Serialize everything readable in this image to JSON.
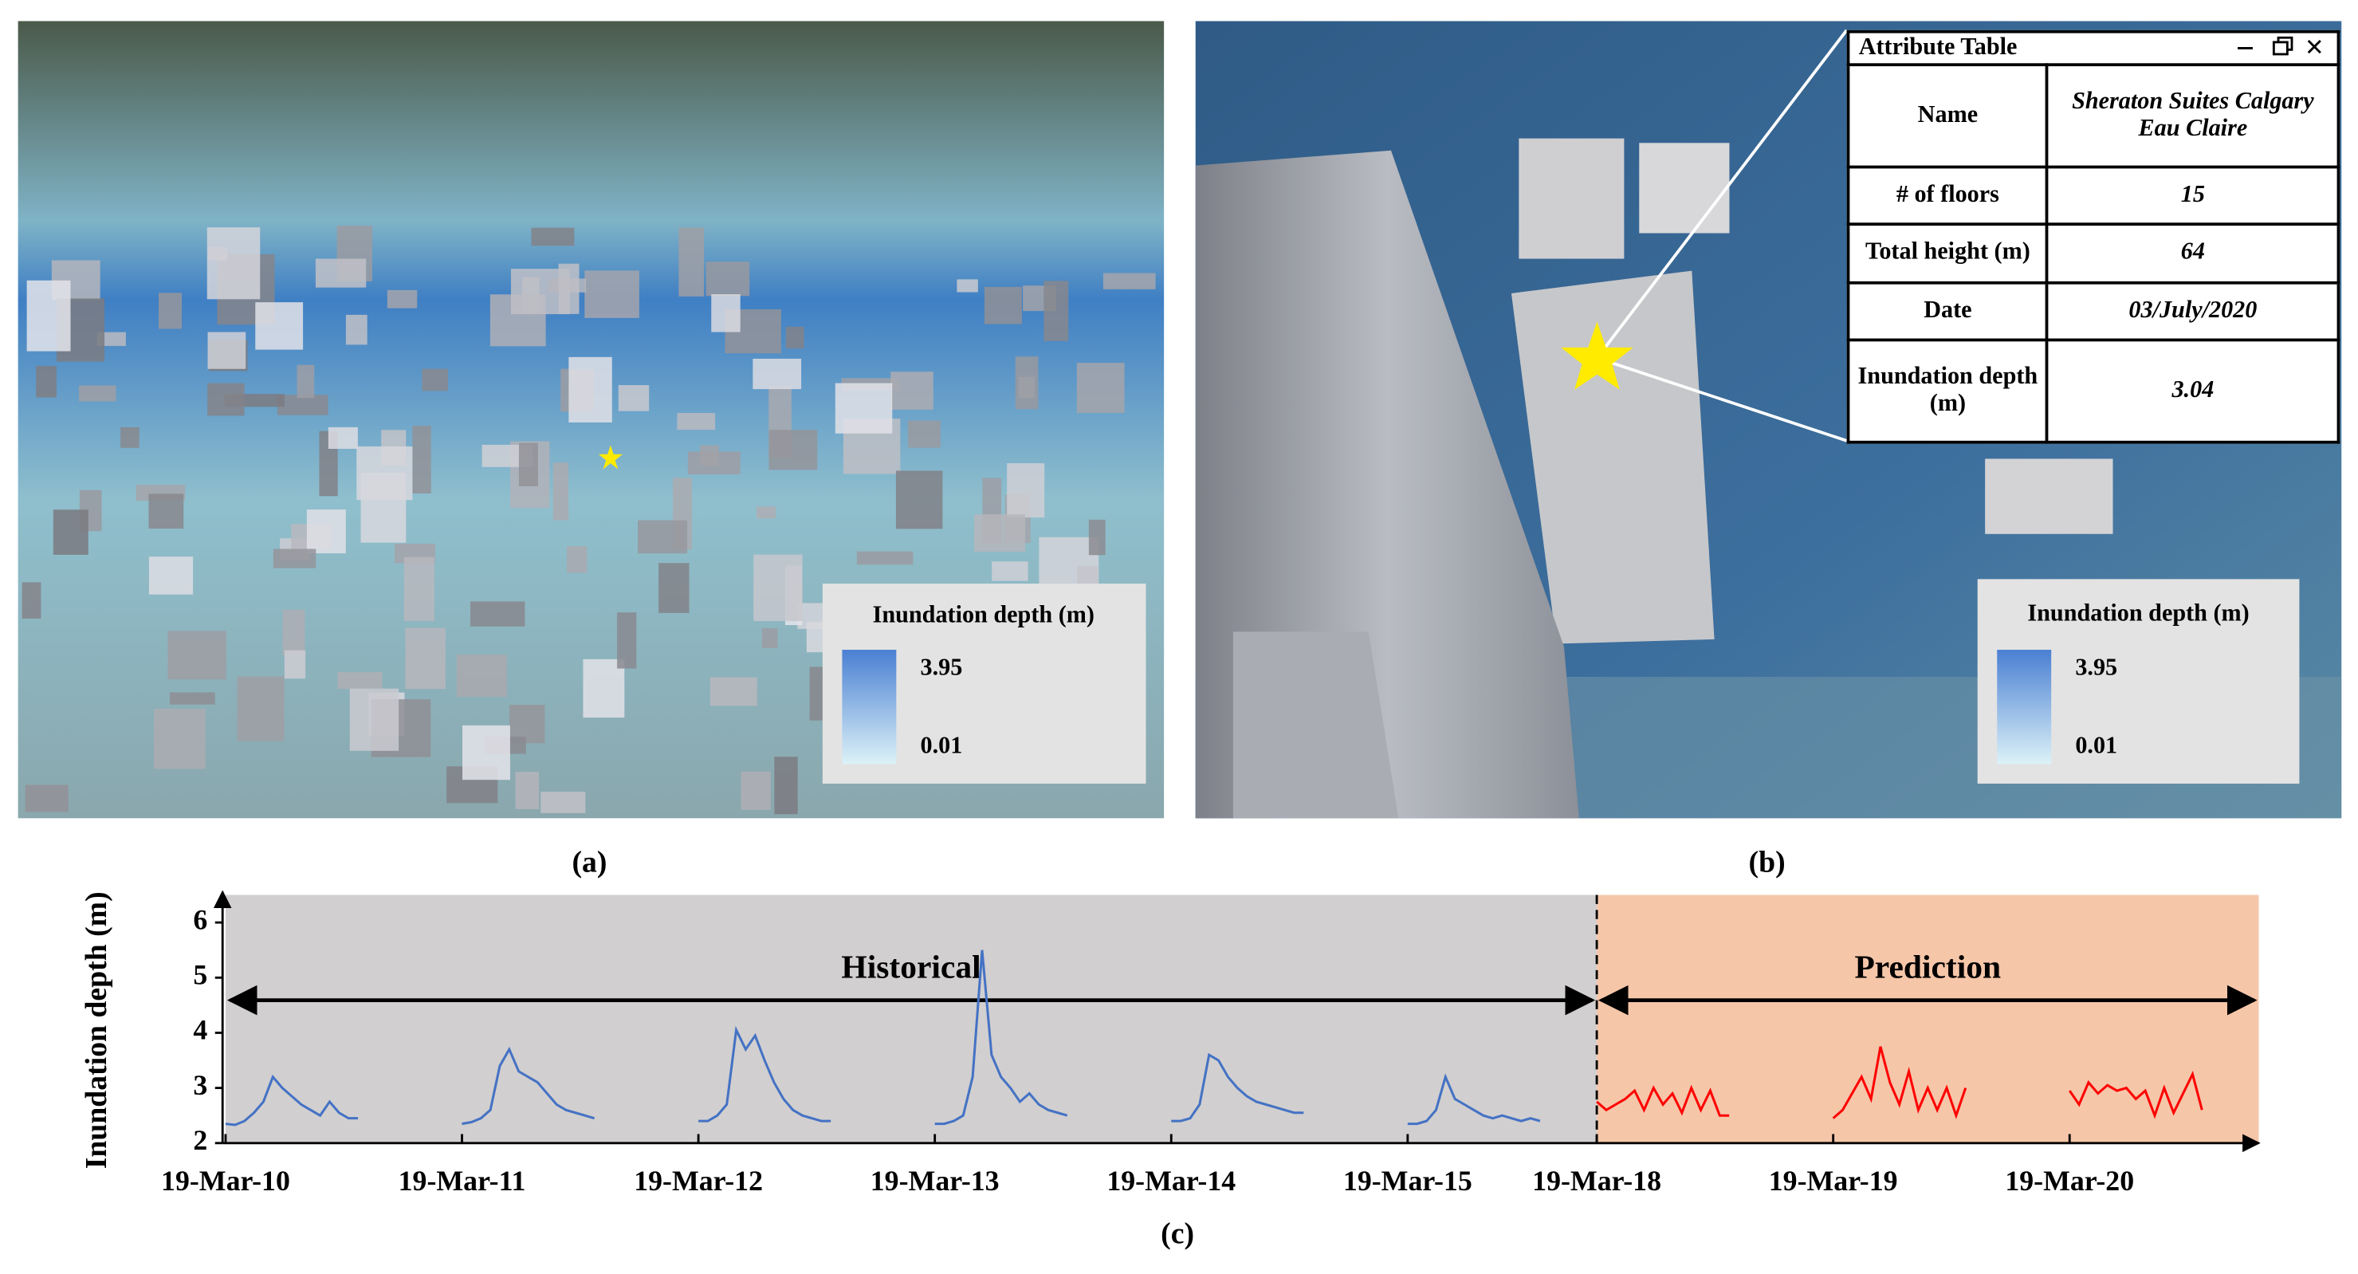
{
  "panel_a": {
    "caption": "(a)",
    "legend": {
      "title": "Inundation depth (m)",
      "max": 3.95,
      "min": 0.01
    }
  },
  "panel_b": {
    "caption": "(b)",
    "legend": {
      "title": "Inundation depth (m)",
      "max": 3.95,
      "min": 0.01
    },
    "attribute_table": {
      "title": "Attribute Table",
      "rows": [
        [
          "Name",
          "Sheraton Suites Calgary Eau Claire"
        ],
        [
          "# of floors",
          15
        ],
        [
          "Total height (m)",
          64
        ],
        [
          "Date",
          "03/July/2020"
        ],
        [
          "Inundation depth (m)",
          3.04
        ]
      ]
    }
  },
  "chart_data": {
    "type": "line",
    "caption": "(c)",
    "y_label": "Inundation depth (m)",
    "xlim": [
      0,
      8.6
    ],
    "ylim": [
      2,
      6.5
    ],
    "yticks": [
      2,
      3,
      4,
      5,
      6
    ],
    "xticks": [
      {
        "value": 0,
        "label": "19-Mar-10"
      },
      {
        "value": 1,
        "label": "19-Mar-11"
      },
      {
        "value": 2,
        "label": "19-Mar-12"
      },
      {
        "value": 3,
        "label": "19-Mar-13"
      },
      {
        "value": 4,
        "label": "19-Mar-14"
      },
      {
        "value": 5,
        "label": "19-Mar-15"
      },
      {
        "value": 5.8,
        "label": "19-Mar-18"
      },
      {
        "value": 6.8,
        "label": "19-Mar-19"
      },
      {
        "value": 7.8,
        "label": "19-Mar-20"
      }
    ],
    "regions": [
      {
        "label": "Historical",
        "color": "#d1cfd0",
        "xrange": [
          0,
          5.8
        ]
      },
      {
        "label": "Prediction",
        "color": "#f6c6a9",
        "xrange": [
          5.8,
          8.6
        ]
      }
    ],
    "series": [
      {
        "color": "#4472c4",
        "x": [
          0,
          0.04,
          0.08,
          0.12,
          0.16,
          0.2,
          0.24,
          0.28,
          0.32,
          0.36,
          0.4,
          0.44,
          0.48,
          0.52,
          0.56
        ],
        "values": [
          2.35,
          2.33,
          2.4,
          2.55,
          2.75,
          3.2,
          3.0,
          2.85,
          2.7,
          2.6,
          2.5,
          2.75,
          2.55,
          2.45,
          2.45
        ]
      },
      {
        "color": "#4472c4",
        "x": [
          1,
          1.04,
          1.08,
          1.12,
          1.16,
          1.2,
          1.24,
          1.28,
          1.32,
          1.36,
          1.4,
          1.44,
          1.48,
          1.52,
          1.56
        ],
        "values": [
          2.35,
          2.38,
          2.45,
          2.6,
          3.4,
          3.7,
          3.3,
          3.2,
          3.1,
          2.9,
          2.7,
          2.6,
          2.55,
          2.5,
          2.45
        ]
      },
      {
        "color": "#4472c4",
        "x": [
          2,
          2.04,
          2.08,
          2.12,
          2.16,
          2.2,
          2.24,
          2.28,
          2.32,
          2.36,
          2.4,
          2.44,
          2.48,
          2.52,
          2.56
        ],
        "values": [
          2.4,
          2.4,
          2.5,
          2.7,
          4.05,
          3.7,
          3.95,
          3.5,
          3.1,
          2.8,
          2.6,
          2.5,
          2.45,
          2.4,
          2.4
        ]
      },
      {
        "color": "#4472c4",
        "x": [
          3,
          3.04,
          3.08,
          3.12,
          3.16,
          3.2,
          3.24,
          3.28,
          3.32,
          3.36,
          3.4,
          3.44,
          3.48,
          3.52,
          3.56
        ],
        "values": [
          2.35,
          2.35,
          2.4,
          2.5,
          3.2,
          5.5,
          3.6,
          3.2,
          3.0,
          2.75,
          2.9,
          2.7,
          2.6,
          2.55,
          2.5
        ]
      },
      {
        "color": "#4472c4",
        "x": [
          4,
          4.04,
          4.08,
          4.12,
          4.16,
          4.2,
          4.24,
          4.28,
          4.32,
          4.36,
          4.4,
          4.44,
          4.48,
          4.52,
          4.56
        ],
        "values": [
          2.4,
          2.4,
          2.45,
          2.7,
          3.6,
          3.5,
          3.2,
          3.0,
          2.85,
          2.75,
          2.7,
          2.65,
          2.6,
          2.55,
          2.55
        ]
      },
      {
        "color": "#4472c4",
        "x": [
          5,
          5.04,
          5.08,
          5.12,
          5.16,
          5.2,
          5.24,
          5.28,
          5.32,
          5.36,
          5.4,
          5.44,
          5.48,
          5.52,
          5.56
        ],
        "values": [
          2.35,
          2.35,
          2.4,
          2.6,
          3.2,
          2.8,
          2.7,
          2.6,
          2.5,
          2.45,
          2.5,
          2.45,
          2.4,
          2.45,
          2.4
        ]
      },
      {
        "color": "#ff0000",
        "x": [
          5.8,
          5.84,
          5.88,
          5.92,
          5.96,
          6.0,
          6.04,
          6.08,
          6.12,
          6.16,
          6.2,
          6.24,
          6.28,
          6.32,
          6.36
        ],
        "values": [
          2.75,
          2.6,
          2.7,
          2.8,
          2.95,
          2.6,
          3.0,
          2.7,
          2.9,
          2.55,
          3.0,
          2.6,
          2.95,
          2.5,
          2.5
        ]
      },
      {
        "color": "#ff0000",
        "x": [
          6.8,
          6.84,
          6.88,
          6.92,
          6.96,
          7.0,
          7.04,
          7.08,
          7.12,
          7.16,
          7.2,
          7.24,
          7.28,
          7.32,
          7.36
        ],
        "values": [
          2.45,
          2.6,
          2.9,
          3.2,
          2.8,
          3.75,
          3.1,
          2.7,
          3.3,
          2.6,
          3.0,
          2.6,
          3.0,
          2.5,
          3.0
        ]
      },
      {
        "color": "#ff0000",
        "x": [
          7.8,
          7.84,
          7.88,
          7.92,
          7.96,
          8.0,
          8.04,
          8.08,
          8.12,
          8.16,
          8.2,
          8.24,
          8.28,
          8.32,
          8.36
        ],
        "values": [
          2.95,
          2.7,
          3.1,
          2.9,
          3.05,
          2.95,
          3.0,
          2.8,
          2.95,
          2.5,
          3.0,
          2.55,
          2.9,
          3.25,
          2.6
        ]
      }
    ]
  }
}
